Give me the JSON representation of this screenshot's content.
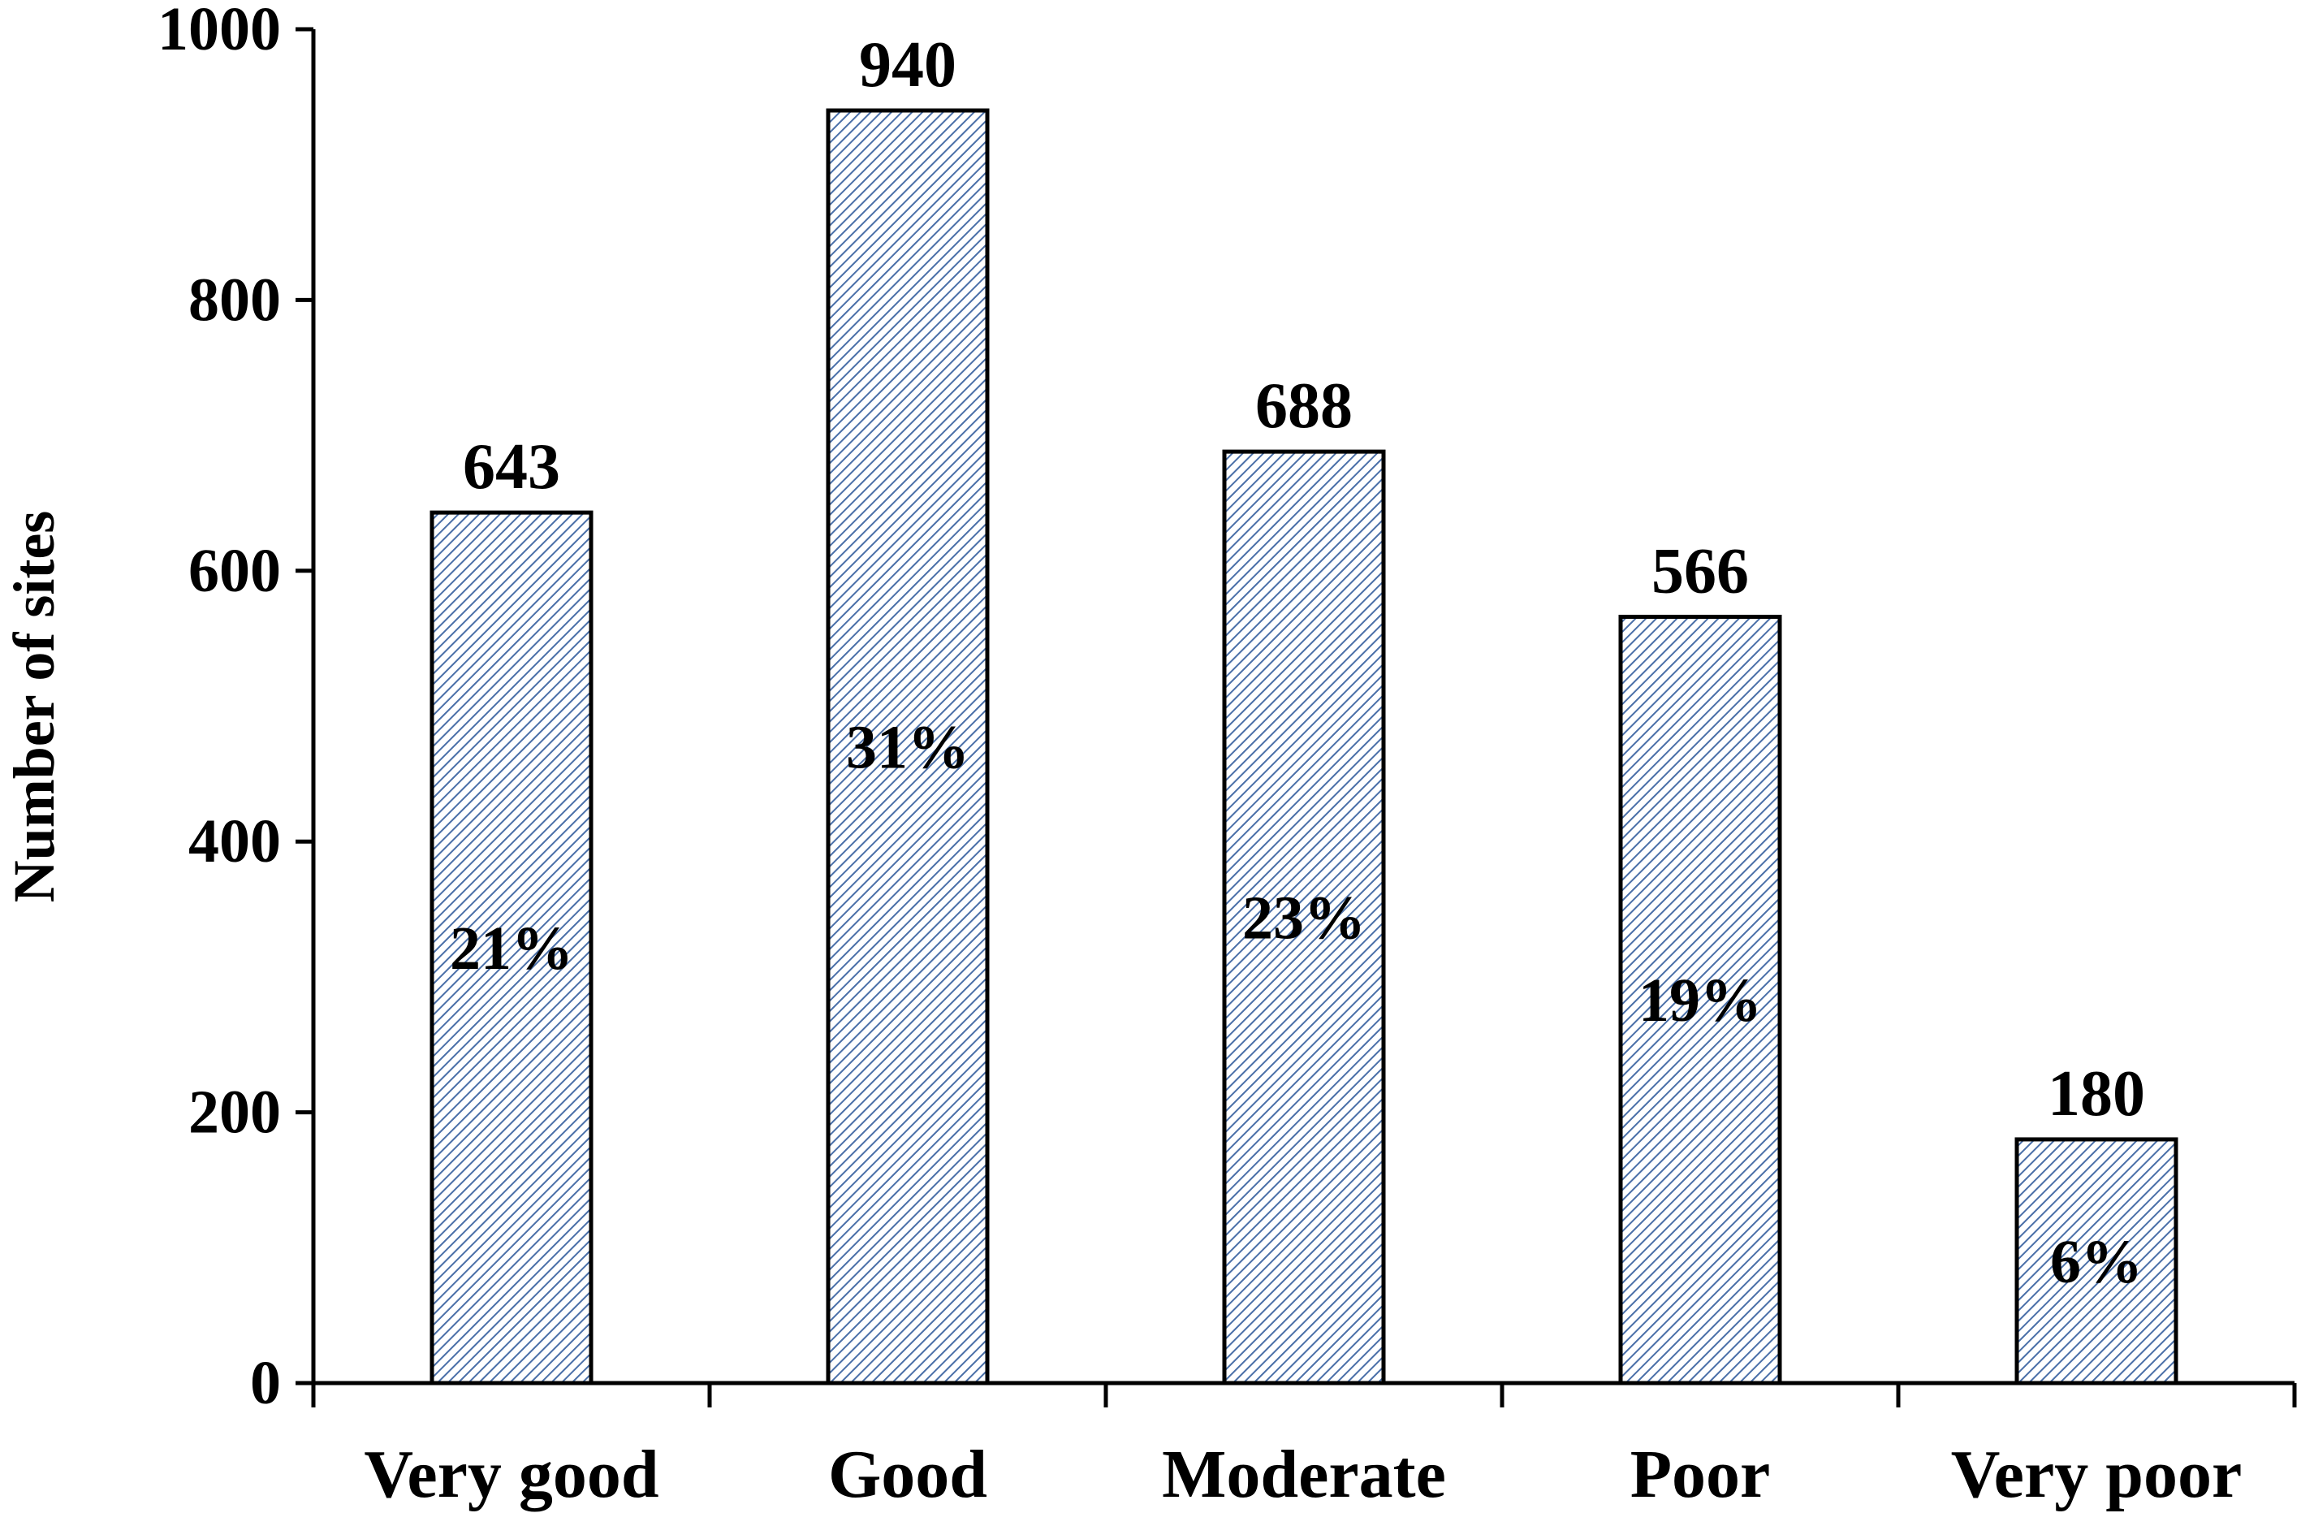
{
  "chart_data": {
    "type": "bar",
    "title": "",
    "xlabel": "",
    "ylabel": "Number of sites",
    "categories": [
      "Very good",
      "Good",
      "Moderate",
      "Poor",
      "Very poor"
    ],
    "values": [
      643,
      940,
      688,
      566,
      180
    ],
    "value_labels": [
      "643",
      "940",
      "688",
      "566",
      "180"
    ],
    "percent_labels": [
      "21%",
      "31%",
      "23%",
      "19%",
      "6%"
    ],
    "ylim": [
      0,
      1000
    ],
    "yticks": [
      0,
      200,
      400,
      600,
      800,
      1000
    ],
    "ytick_labels": [
      "0",
      "200",
      "400",
      "600",
      "800",
      "1000"
    ],
    "grid": false,
    "legend": "none",
    "bar_fill": "hatched diagonal",
    "colors": {
      "bar_hatch_line": "#4a6fa8",
      "bar_background": "#ffffff",
      "axis": "#000000",
      "text": "#000000"
    }
  }
}
